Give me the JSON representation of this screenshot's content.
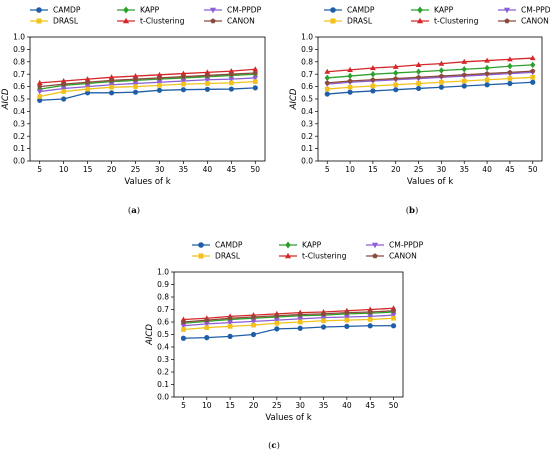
{
  "colors": {
    "CAMDP": "#1f5fa8",
    "KAPP": "#2ca02c",
    "CM-PPDP": "#8c5ed6",
    "DRASL": "#f2c21a",
    "t-Clustering": "#d62728",
    "CANON": "#8c4a3c"
  },
  "chart_data": [
    {
      "type": "line",
      "caption": "a",
      "xlabel": "Values of k",
      "ylabel": "AICD",
      "ylim": [
        0,
        1
      ],
      "yticks": [
        "0.0",
        "0.1",
        "0.2",
        "0.3",
        "0.4",
        "0.5",
        "0.6",
        "0.7",
        "0.8",
        "0.9",
        "1.0"
      ],
      "x": [
        5,
        10,
        15,
        20,
        25,
        30,
        35,
        40,
        45,
        50
      ],
      "legend": {
        "placement": "top-center"
      },
      "series": [
        {
          "name": "CAMDP",
          "marker": "circle",
          "values": [
            0.49,
            0.5,
            0.55,
            0.55,
            0.555,
            0.57,
            0.575,
            0.578,
            0.58,
            0.59
          ]
        },
        {
          "name": "KAPP",
          "marker": "diamond",
          "values": [
            0.58,
            0.61,
            0.625,
            0.64,
            0.65,
            0.66,
            0.67,
            0.68,
            0.69,
            0.7
          ]
        },
        {
          "name": "CM-PPDP",
          "marker": "triangle-down",
          "values": [
            0.56,
            0.585,
            0.6,
            0.615,
            0.625,
            0.635,
            0.645,
            0.655,
            0.66,
            0.67
          ]
        },
        {
          "name": "DRASL",
          "marker": "square",
          "values": [
            0.52,
            0.56,
            0.58,
            0.595,
            0.6,
            0.61,
            0.62,
            0.625,
            0.63,
            0.64
          ]
        },
        {
          "name": "t-Clustering",
          "marker": "triangle-up",
          "values": [
            0.63,
            0.645,
            0.66,
            0.675,
            0.685,
            0.695,
            0.705,
            0.715,
            0.725,
            0.74
          ]
        },
        {
          "name": "CANON",
          "marker": "pentagon",
          "values": [
            0.6,
            0.62,
            0.635,
            0.65,
            0.66,
            0.67,
            0.68,
            0.69,
            0.7,
            0.71
          ]
        }
      ]
    },
    {
      "type": "line",
      "caption": "b",
      "xlabel": "Values of k",
      "ylabel": "AICD",
      "ylim": [
        0,
        1
      ],
      "yticks": [
        "0.0",
        "0.1",
        "0.2",
        "0.3",
        "0.4",
        "0.5",
        "0.6",
        "0.7",
        "0.8",
        "0.9",
        "1.0"
      ],
      "x": [
        5,
        10,
        15,
        20,
        25,
        30,
        35,
        40,
        45,
        50
      ],
      "legend": {
        "placement": "top-center"
      },
      "series": [
        {
          "name": "CAMDP",
          "marker": "circle",
          "values": [
            0.54,
            0.555,
            0.565,
            0.575,
            0.585,
            0.595,
            0.605,
            0.615,
            0.625,
            0.635
          ]
        },
        {
          "name": "KAPP",
          "marker": "diamond",
          "values": [
            0.67,
            0.685,
            0.7,
            0.71,
            0.72,
            0.73,
            0.74,
            0.75,
            0.765,
            0.775
          ]
        },
        {
          "name": "CM-PPDP",
          "marker": "triangle-down",
          "values": [
            0.62,
            0.635,
            0.645,
            0.655,
            0.665,
            0.675,
            0.685,
            0.695,
            0.705,
            0.715
          ]
        },
        {
          "name": "DRASL",
          "marker": "square",
          "values": [
            0.58,
            0.595,
            0.605,
            0.615,
            0.625,
            0.635,
            0.645,
            0.655,
            0.665,
            0.675
          ]
        },
        {
          "name": "t-Clustering",
          "marker": "triangle-up",
          "values": [
            0.72,
            0.735,
            0.75,
            0.76,
            0.775,
            0.785,
            0.8,
            0.81,
            0.82,
            0.83
          ]
        },
        {
          "name": "CANON",
          "marker": "pentagon",
          "values": [
            0.63,
            0.645,
            0.655,
            0.665,
            0.675,
            0.685,
            0.695,
            0.705,
            0.715,
            0.725
          ]
        }
      ]
    },
    {
      "type": "line",
      "caption": "c",
      "xlabel": "Values of k",
      "ylabel": "AICD",
      "ylim": [
        0,
        1
      ],
      "yticks": [
        "0.0",
        "0.1",
        "0.2",
        "0.3",
        "0.4",
        "0.5",
        "0.6",
        "0.7",
        "0.8",
        "0.9",
        "1.0"
      ],
      "x": [
        5,
        10,
        15,
        20,
        25,
        30,
        35,
        40,
        45,
        50
      ],
      "legend": {
        "placement": "top-center"
      },
      "series": [
        {
          "name": "CAMDP",
          "marker": "circle",
          "values": [
            0.47,
            0.475,
            0.485,
            0.5,
            0.545,
            0.55,
            0.56,
            0.565,
            0.57,
            0.57
          ]
        },
        {
          "name": "KAPP",
          "marker": "diamond",
          "values": [
            0.59,
            0.605,
            0.62,
            0.63,
            0.64,
            0.65,
            0.655,
            0.665,
            0.67,
            0.68
          ]
        },
        {
          "name": "CM-PPDP",
          "marker": "triangle-down",
          "values": [
            0.57,
            0.585,
            0.595,
            0.605,
            0.615,
            0.625,
            0.635,
            0.64,
            0.645,
            0.655
          ]
        },
        {
          "name": "DRASL",
          "marker": "square",
          "values": [
            0.54,
            0.555,
            0.565,
            0.575,
            0.59,
            0.6,
            0.61,
            0.615,
            0.62,
            0.63
          ]
        },
        {
          "name": "t-Clustering",
          "marker": "triangle-up",
          "values": [
            0.62,
            0.63,
            0.645,
            0.655,
            0.665,
            0.675,
            0.68,
            0.69,
            0.7,
            0.71
          ]
        },
        {
          "name": "CANON",
          "marker": "pentagon",
          "values": [
            0.6,
            0.615,
            0.63,
            0.64,
            0.65,
            0.66,
            0.665,
            0.675,
            0.68,
            0.69
          ]
        }
      ]
    }
  ]
}
